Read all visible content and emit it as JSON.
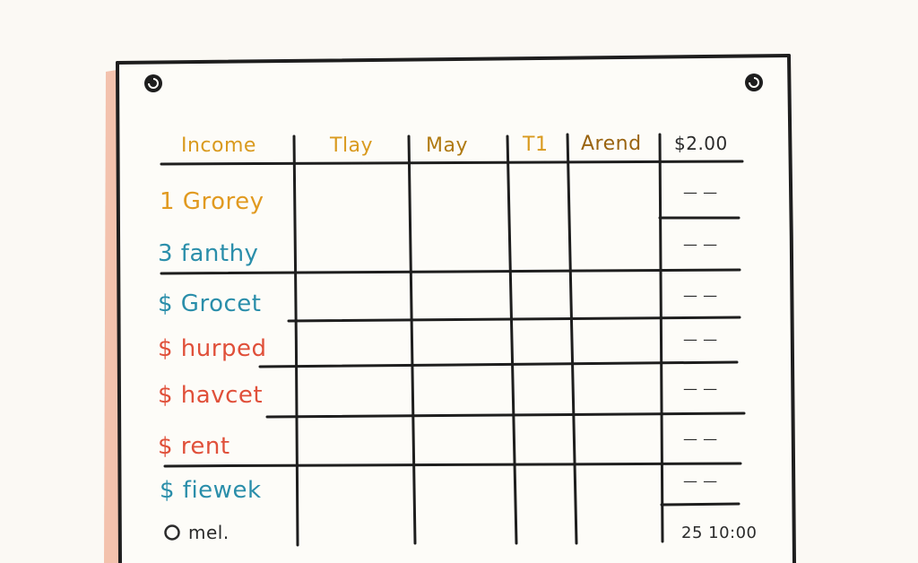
{
  "sheet": {
    "headers": [
      {
        "text": "Income",
        "color": "#d99a1e"
      },
      {
        "text": "Tlay",
        "color": "#d99a1e"
      },
      {
        "text": "May",
        "color": "#b07a12"
      },
      {
        "text": "T1",
        "color": "#d99a1e"
      },
      {
        "text": "Arend",
        "color": "#9a6410"
      },
      {
        "text": "$2.00",
        "color": "#2b2b2b"
      }
    ],
    "rows": [
      {
        "label": "1 Grorey",
        "color": "#e19a20",
        "value": "— —"
      },
      {
        "label": "3 fanthy",
        "color": "#2a8eaa",
        "value": "— —"
      },
      {
        "label": "$ Grocet",
        "color": "#2a8eaa",
        "value": "— —"
      },
      {
        "label": "$ hurped",
        "color": "#e0503a",
        "value": "— —"
      },
      {
        "label": "$ havcet",
        "color": "#e0503a",
        "value": "— —"
      },
      {
        "label": "$ rent",
        "color": "#e0503a",
        "value": "— —"
      },
      {
        "label": "$ fiewek",
        "color": "#2a8eaa",
        "value": "— —"
      }
    ],
    "footer": {
      "label": "mel.",
      "total": "25 10:00"
    }
  }
}
